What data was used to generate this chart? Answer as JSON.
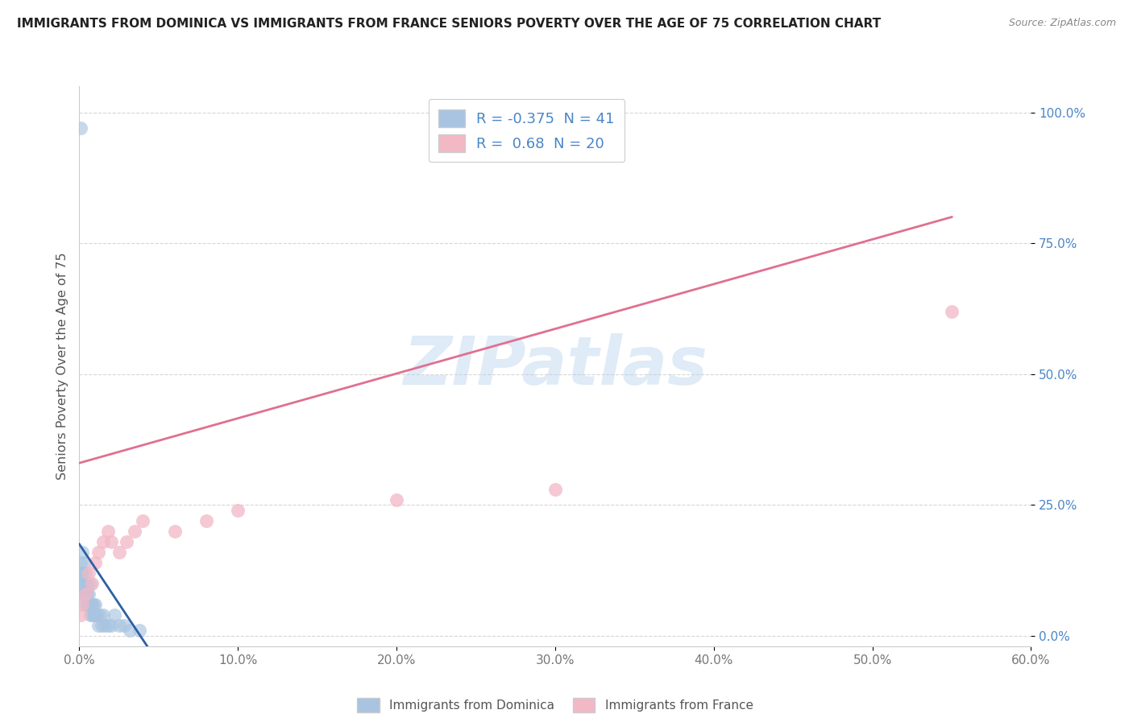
{
  "title": "IMMIGRANTS FROM DOMINICA VS IMMIGRANTS FROM FRANCE SENIORS POVERTY OVER THE AGE OF 75 CORRELATION CHART",
  "source": "Source: ZipAtlas.com",
  "ylabel": "Seniors Poverty Over the Age of 75",
  "xlim": [
    0.0,
    0.6
  ],
  "ylim": [
    -0.02,
    1.05
  ],
  "yticks": [
    0.0,
    0.25,
    0.5,
    0.75,
    1.0
  ],
  "ytick_labels": [
    "0.0%",
    "25.0%",
    "50.0%",
    "75.0%",
    "100.0%"
  ],
  "xticks": [
    0.0,
    0.1,
    0.2,
    0.3,
    0.4,
    0.5,
    0.6
  ],
  "xtick_labels": [
    "0.0%",
    "10.0%",
    "20.0%",
    "30.0%",
    "40.0%",
    "50.0%",
    "60.0%"
  ],
  "dominica_color": "#a8c4e0",
  "france_color": "#f2b8c6",
  "dominica_line_color": "#2d5fa6",
  "france_line_color": "#e07090",
  "dominica_R": -0.375,
  "dominica_N": 41,
  "france_R": 0.68,
  "france_N": 20,
  "watermark_text": "ZIPatlas",
  "background_color": "#ffffff",
  "grid_color": "#cccccc",
  "legend_label1": "Immigrants from Dominica",
  "legend_label2": "Immigrants from France",
  "dominica_x": [
    0.001,
    0.001,
    0.001,
    0.002,
    0.002,
    0.002,
    0.002,
    0.003,
    0.003,
    0.003,
    0.004,
    0.004,
    0.004,
    0.005,
    0.005,
    0.005,
    0.006,
    0.006,
    0.007,
    0.007,
    0.007,
    0.008,
    0.008,
    0.009,
    0.009,
    0.01,
    0.01,
    0.011,
    0.012,
    0.013,
    0.014,
    0.015,
    0.016,
    0.018,
    0.02,
    0.022,
    0.025,
    0.028,
    0.032,
    0.038,
    0.001
  ],
  "dominica_y": [
    0.1,
    0.12,
    0.14,
    0.08,
    0.1,
    0.12,
    0.16,
    0.08,
    0.1,
    0.14,
    0.06,
    0.08,
    0.12,
    0.06,
    0.08,
    0.1,
    0.06,
    0.08,
    0.04,
    0.06,
    0.1,
    0.04,
    0.06,
    0.04,
    0.06,
    0.04,
    0.06,
    0.04,
    0.02,
    0.04,
    0.02,
    0.04,
    0.02,
    0.02,
    0.02,
    0.04,
    0.02,
    0.02,
    0.01,
    0.01,
    0.97
  ],
  "dominica_line_x": [
    0.0,
    0.045
  ],
  "dominica_line_y": [
    0.175,
    -0.03
  ],
  "france_x": [
    0.001,
    0.002,
    0.004,
    0.006,
    0.008,
    0.01,
    0.012,
    0.015,
    0.018,
    0.02,
    0.025,
    0.03,
    0.035,
    0.04,
    0.06,
    0.08,
    0.1,
    0.2,
    0.3,
    0.55
  ],
  "france_y": [
    0.04,
    0.06,
    0.08,
    0.12,
    0.1,
    0.14,
    0.16,
    0.18,
    0.2,
    0.18,
    0.16,
    0.18,
    0.2,
    0.22,
    0.2,
    0.22,
    0.24,
    0.26,
    0.28,
    0.62
  ],
  "france_line_x": [
    0.0,
    0.55
  ],
  "france_line_y": [
    0.33,
    0.8
  ]
}
